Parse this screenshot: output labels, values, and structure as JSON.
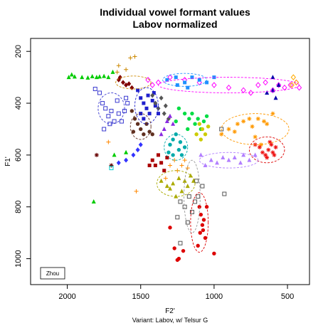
{
  "chart_data": {
    "type": "scatter",
    "title": "Individual vowel formant values",
    "subtitle": "Labov normalized",
    "xlabel": "F2'",
    "ylabel": "F1'",
    "caption": "Variant: Labov, w/ Telsur G",
    "legend": {
      "label": "Zhou",
      "position": "bottom-left"
    },
    "x_reversed": true,
    "y_reversed": true,
    "xlim": [
      2250,
      350
    ],
    "ylim": [
      1100,
      150
    ],
    "x_ticks": [
      2000,
      1500,
      1000,
      500
    ],
    "y_ticks": [
      200,
      400,
      600,
      800,
      1000
    ],
    "grid": false,
    "series": [
      {
        "color": "#00cc00",
        "marker": "triangle",
        "points": [
          [
            1990,
            300
          ],
          [
            1950,
            298
          ],
          [
            1900,
            300
          ],
          [
            1860,
            302
          ],
          [
            1830,
            297
          ],
          [
            1800,
            300
          ],
          [
            1780,
            298
          ],
          [
            1750,
            296
          ],
          [
            1720,
            300
          ],
          [
            1690,
            280
          ],
          [
            1970,
            290
          ]
        ]
      },
      {
        "color": "#3a3ad0",
        "marker": "square-open",
        "points": [
          [
            1810,
            345
          ],
          [
            1780,
            360
          ],
          [
            1760,
            400
          ],
          [
            1740,
            420
          ],
          [
            1720,
            450
          ],
          [
            1700,
            430
          ],
          [
            1680,
            470
          ],
          [
            1660,
            390
          ],
          [
            1650,
            440
          ],
          [
            1630,
            470
          ],
          [
            1610,
            430
          ],
          [
            1600,
            380
          ],
          [
            1590,
            400
          ],
          [
            1750,
            500
          ],
          [
            1710,
            480
          ]
        ]
      },
      {
        "color": "#cc8800",
        "marker": "plus",
        "points": [
          [
            1570,
            225
          ],
          [
            1540,
            220
          ],
          [
            1600,
            270
          ],
          [
            1650,
            255
          ],
          [
            1660,
            280
          ]
        ]
      },
      {
        "color": "#800000",
        "marker": "diamond",
        "points": [
          [
            1650,
            310
          ],
          [
            1620,
            320
          ],
          [
            1600,
            330
          ],
          [
            1580,
            325
          ],
          [
            1560,
            340
          ],
          [
            1640,
            300
          ]
        ]
      },
      {
        "color": "#2020cc",
        "marker": "square",
        "points": [
          [
            1520,
            350
          ],
          [
            1500,
            380
          ],
          [
            1480,
            400
          ],
          [
            1460,
            420
          ],
          [
            1440,
            440
          ],
          [
            1420,
            390
          ],
          [
            1410,
            360
          ],
          [
            1400,
            410
          ],
          [
            1380,
            440
          ],
          [
            1500,
            440
          ],
          [
            1480,
            460
          ],
          [
            1450,
            370
          ]
        ]
      },
      {
        "color": "#603020",
        "marker": "circle",
        "points": [
          [
            1560,
            430
          ],
          [
            1540,
            460
          ],
          [
            1520,
            480
          ],
          [
            1500,
            500
          ],
          [
            1480,
            520
          ],
          [
            1460,
            480
          ],
          [
            1440,
            510
          ],
          [
            1420,
            520
          ],
          [
            1550,
            510
          ]
        ]
      },
      {
        "color": "#555555",
        "marker": "diamond",
        "points": [
          [
            1420,
            370
          ],
          [
            1400,
            400
          ],
          [
            1380,
            420
          ],
          [
            1360,
            380
          ],
          [
            1340,
            440
          ],
          [
            1330,
            410
          ],
          [
            1310,
            460
          ]
        ]
      },
      {
        "color": "#ff00ff",
        "marker": "diamond-open",
        "points": [
          [
            1450,
            310
          ],
          [
            1420,
            330
          ],
          [
            1380,
            320
          ],
          [
            1300,
            300
          ],
          [
            1200,
            310
          ],
          [
            1100,
            320
          ],
          [
            1000,
            330
          ],
          [
            900,
            340
          ],
          [
            800,
            350
          ],
          [
            750,
            360
          ],
          [
            700,
            330
          ],
          [
            650,
            320
          ],
          [
            600,
            350
          ],
          [
            560,
            330
          ],
          [
            520,
            340
          ],
          [
            480,
            330
          ],
          [
            440,
            320
          ],
          [
            420,
            340
          ]
        ]
      },
      {
        "color": "#1e90ff",
        "marker": "square",
        "points": [
          [
            1320,
            310
          ],
          [
            1260,
            300
          ],
          [
            1200,
            320
          ],
          [
            1150,
            300
          ],
          [
            1100,
            310
          ],
          [
            1050,
            320
          ],
          [
            1000,
            300
          ],
          [
            1250,
            330
          ],
          [
            1180,
            340
          ]
        ]
      },
      {
        "color": "#00aaaa",
        "marker": "circle",
        "points": [
          [
            1300,
            560
          ],
          [
            1280,
            540
          ],
          [
            1260,
            520
          ],
          [
            1240,
            580
          ],
          [
            1220,
            600
          ],
          [
            1200,
            570
          ],
          [
            1280,
            600
          ],
          [
            1310,
            590
          ],
          [
            1230,
            550
          ]
        ]
      },
      {
        "color": "#8a2be2",
        "marker": "triangle",
        "points": [
          [
            1360,
            520
          ],
          [
            1340,
            500
          ],
          [
            1320,
            470
          ],
          [
            1300,
            450
          ],
          [
            1280,
            480
          ]
        ]
      },
      {
        "color": "#00dd44",
        "marker": "circle",
        "points": [
          [
            1240,
            420
          ],
          [
            1200,
            440
          ],
          [
            1170,
            460
          ],
          [
            1150,
            440
          ],
          [
            1130,
            480
          ],
          [
            1110,
            460
          ],
          [
            1090,
            500
          ],
          [
            1070,
            470
          ],
          [
            1050,
            450
          ],
          [
            1260,
            470
          ],
          [
            1180,
            500
          ]
        ]
      },
      {
        "color": "#cccc00",
        "marker": "circle",
        "points": [
          [
            1100,
            480
          ],
          [
            1080,
            500
          ],
          [
            1060,
            520
          ],
          [
            1040,
            490
          ],
          [
            1120,
            520
          ],
          [
            1090,
            540
          ]
        ]
      },
      {
        "color": "#aa0000",
        "marker": "square",
        "points": [
          [
            1420,
            620
          ],
          [
            1400,
            640
          ],
          [
            1380,
            600
          ],
          [
            1360,
            630
          ],
          [
            1340,
            660
          ],
          [
            1320,
            610
          ],
          [
            1440,
            640
          ]
        ]
      },
      {
        "color": "#ff8c00",
        "marker": "plus",
        "points": [
          [
            1300,
            640
          ],
          [
            1270,
            620
          ],
          [
            1250,
            660
          ],
          [
            1220,
            640
          ],
          [
            1200,
            620
          ],
          [
            1180,
            650
          ],
          [
            1330,
            690
          ]
        ]
      },
      {
        "color": "#aaaa00",
        "marker": "triangle",
        "points": [
          [
            1360,
            700
          ],
          [
            1320,
            720
          ],
          [
            1280,
            710
          ],
          [
            1240,
            690
          ],
          [
            1200,
            700
          ],
          [
            1160,
            680
          ],
          [
            1140,
            700
          ],
          [
            1300,
            730
          ],
          [
            1260,
            760
          ],
          [
            1220,
            740
          ],
          [
            1180,
            720
          ]
        ]
      },
      {
        "color": "#555555",
        "marker": "square-open",
        "points": [
          [
            1230,
            780
          ],
          [
            1200,
            800
          ],
          [
            1170,
            760
          ],
          [
            1150,
            820
          ],
          [
            1130,
            780
          ],
          [
            1250,
            840
          ],
          [
            1110,
            760
          ],
          [
            1120,
            700
          ],
          [
            1080,
            720
          ],
          [
            1230,
            940
          ],
          [
            1180,
            860
          ],
          [
            930,
            750
          ],
          [
            950,
            500
          ]
        ]
      },
      {
        "color": "#dd0000",
        "marker": "circle",
        "points": [
          [
            1100,
            800
          ],
          [
            1090,
            830
          ],
          [
            1080,
            870
          ],
          [
            1075,
            890
          ],
          [
            1070,
            850
          ],
          [
            1095,
            900
          ],
          [
            1060,
            920
          ],
          [
            1050,
            800
          ],
          [
            1210,
            970
          ],
          [
            1240,
            1000
          ],
          [
            1250,
            1005
          ],
          [
            1270,
            960
          ],
          [
            1110,
            950
          ],
          [
            1000,
            980
          ],
          [
            1300,
            880
          ]
        ]
      },
      {
        "color": "#ff9900",
        "marker": "asterisk",
        "points": [
          [
            950,
            520
          ],
          [
            900,
            500
          ],
          [
            860,
            510
          ],
          [
            840,
            480
          ],
          [
            800,
            470
          ],
          [
            760,
            460
          ],
          [
            740,
            490
          ],
          [
            700,
            460
          ],
          [
            660,
            470
          ],
          [
            640,
            480
          ],
          [
            600,
            440
          ],
          [
            680,
            560
          ],
          [
            720,
            530
          ]
        ]
      },
      {
        "color": "#ee1111",
        "marker": "asterisk",
        "points": [
          [
            720,
            560
          ],
          [
            690,
            570
          ],
          [
            670,
            590
          ],
          [
            650,
            600
          ],
          [
            630,
            580
          ],
          [
            610,
            560
          ],
          [
            600,
            590
          ],
          [
            580,
            570
          ],
          [
            590,
            600
          ],
          [
            640,
            610
          ],
          [
            620,
            550
          ]
        ]
      },
      {
        "color": "#b27fff",
        "marker": "triangle",
        "points": [
          [
            1020,
            620
          ],
          [
            980,
            630
          ],
          [
            940,
            610
          ],
          [
            900,
            620
          ],
          [
            860,
            610
          ],
          [
            820,
            630
          ],
          [
            800,
            600
          ],
          [
            760,
            620
          ],
          [
            720,
            600
          ],
          [
            1060,
            640
          ],
          [
            1090,
            600
          ]
        ]
      },
      {
        "color": "#0000aa",
        "marker": "triangle",
        "points": [
          [
            640,
            360
          ],
          [
            600,
            350
          ],
          [
            580,
            380
          ],
          [
            600,
            300
          ],
          [
            560,
            330
          ]
        ]
      },
      {
        "color": "#ffaa00",
        "marker": "diamond-open",
        "points": [
          [
            460,
            300
          ],
          [
            440,
            320
          ],
          [
            470,
            330
          ]
        ]
      },
      {
        "color": "#3333ff",
        "marker": "diamond",
        "points": [
          [
            1650,
            630
          ],
          [
            1600,
            620
          ],
          [
            1550,
            600
          ],
          [
            1520,
            580
          ],
          [
            1500,
            560
          ]
        ]
      },
      {
        "color": "#00cc00",
        "marker": "triangle",
        "points": [
          [
            1820,
            780
          ],
          [
            1680,
            600
          ],
          [
            1600,
            590
          ]
        ]
      },
      {
        "color": "#660000",
        "marker": "asterisk",
        "points": [
          [
            1800,
            600
          ],
          [
            1700,
            640
          ]
        ]
      },
      {
        "color": "#00cccc",
        "marker": "square-open",
        "points": [
          [
            1700,
            650
          ]
        ]
      },
      {
        "color": "#ff8800",
        "marker": "plus",
        "points": [
          [
            1720,
            550
          ],
          [
            1530,
            740
          ]
        ]
      }
    ],
    "ellipses": [
      {
        "color": "#cc8800",
        "cx": 1550,
        "cy": 320,
        "rx": 120,
        "ry": 25
      },
      {
        "color": "#3a3ad0",
        "cx": 1700,
        "cy": 420,
        "rx": 90,
        "ry": 60
      },
      {
        "color": "#ff00ff",
        "cx": 900,
        "cy": 330,
        "rx": 480,
        "ry": 30
      },
      {
        "color": "#1e90ff",
        "cx": 1200,
        "cy": 310,
        "rx": 150,
        "ry": 25
      },
      {
        "color": "#ff9900",
        "cx": 720,
        "cy": 500,
        "rx": 230,
        "ry": 60
      },
      {
        "color": "#dd0000",
        "cx": 640,
        "cy": 580,
        "rx": 120,
        "ry": 50
      },
      {
        "color": "#b27fff",
        "cx": 900,
        "cy": 620,
        "rx": 200,
        "ry": 30
      },
      {
        "color": "#dd0000",
        "cx": 1100,
        "cy": 860,
        "rx": 60,
        "ry": 115
      },
      {
        "color": "#999999",
        "cx": 1150,
        "cy": 760,
        "rx": 55,
        "ry": 140
      },
      {
        "color": "#aaaa00",
        "cx": 1260,
        "cy": 710,
        "rx": 130,
        "ry": 50
      },
      {
        "color": "#00aaaa",
        "cx": 1260,
        "cy": 570,
        "rx": 80,
        "ry": 50
      },
      {
        "color": "#2020cc",
        "cx": 1460,
        "cy": 410,
        "rx": 80,
        "ry": 70
      },
      {
        "color": "#603020",
        "cx": 1500,
        "cy": 490,
        "rx": 70,
        "ry": 50
      }
    ]
  }
}
